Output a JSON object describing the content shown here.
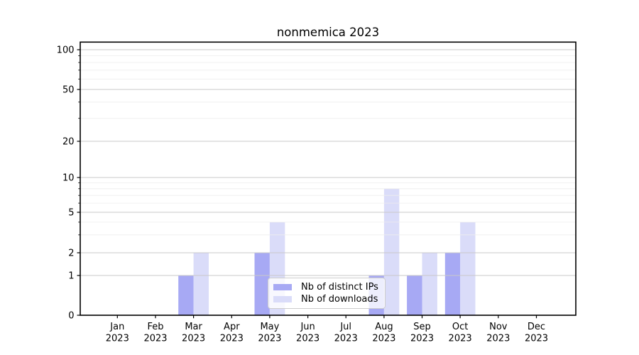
{
  "chart_data": {
    "type": "bar",
    "title": "nonmemica 2023",
    "month_labels": [
      "Jan",
      "Feb",
      "Mar",
      "Apr",
      "May",
      "Jun",
      "Jul",
      "Aug",
      "Sep",
      "Oct",
      "Nov",
      "Dec"
    ],
    "x_tick_year": "2023",
    "categories": [
      "Jan 2023",
      "Feb 2023",
      "Mar 2023",
      "Apr 2023",
      "May 2023",
      "Jun 2023",
      "Jul 2023",
      "Aug 2023",
      "Sep 2023",
      "Oct 2023",
      "Nov 2023",
      "Dec 2023"
    ],
    "series": [
      {
        "name": "Nb of distinct IPs",
        "color": "#a7a9f4",
        "values": [
          0,
          0,
          1,
          0,
          2,
          0,
          0,
          1,
          1,
          2,
          0,
          0
        ]
      },
      {
        "name": "Nb of downloads",
        "color": "#dadcf9",
        "values": [
          0,
          0,
          2,
          0,
          4,
          0,
          0,
          8,
          2,
          4,
          0,
          0
        ]
      }
    ],
    "xlabel": "",
    "ylabel": "",
    "y_axis": {
      "scale": "symlog",
      "major_ticks": [
        0,
        1,
        2,
        5,
        10,
        20,
        50,
        100
      ],
      "minor_ticks": [
        3,
        4,
        6,
        7,
        8,
        9,
        30,
        40,
        60,
        70,
        80,
        90
      ],
      "range": [
        0,
        115
      ]
    },
    "legend": {
      "position": "lower center inside",
      "entries": [
        "Nb of distinct IPs",
        "Nb of downloads"
      ]
    },
    "grid": {
      "major": true,
      "minor": true
    },
    "colors": {
      "distinct_ips": "#a7a9f4",
      "downloads": "#dadcf9",
      "grid_major": "#c9c9c9",
      "grid_minor": "#ededed",
      "axis": "#000000",
      "background": "#ffffff"
    }
  }
}
